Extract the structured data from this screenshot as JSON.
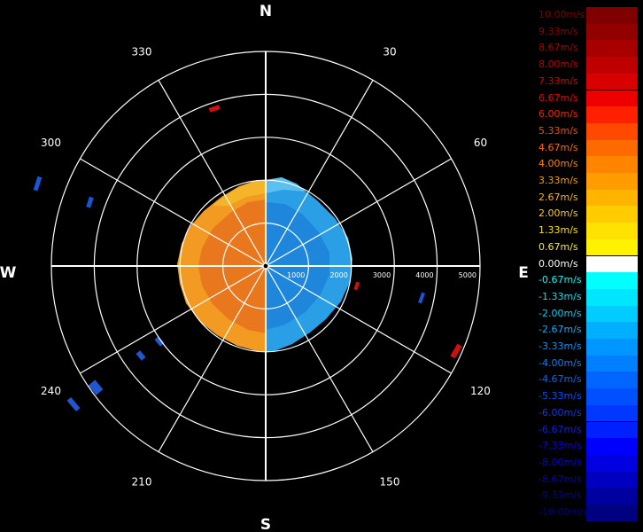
{
  "compass": {
    "north": "N",
    "south": "S",
    "east": "E",
    "west": "W"
  },
  "bearings": [
    "30",
    "60",
    "120",
    "150",
    "210",
    "240",
    "300",
    "330"
  ],
  "range_rings": [
    "1000",
    "2000",
    "3000",
    "4000",
    "5000"
  ],
  "legend": [
    {
      "label": "10.00m/s",
      "color": "#800000"
    },
    {
      "label": "9.33m/s",
      "color": "#930000"
    },
    {
      "label": "8.67m/s",
      "color": "#a80000"
    },
    {
      "label": "8.00m/s",
      "color": "#bf0000"
    },
    {
      "label": "7.33m/s",
      "color": "#d80000"
    },
    {
      "label": "6.67m/s",
      "color": "#ef0000"
    },
    {
      "label": "6.00m/s",
      "color": "#ff2000"
    },
    {
      "label": "5.33m/s",
      "color": "#ff4800"
    },
    {
      "label": "4.67m/s",
      "color": "#ff6a00"
    },
    {
      "label": "4.00m/s",
      "color": "#ff8400"
    },
    {
      "label": "3.33m/s",
      "color": "#ff9c00"
    },
    {
      "label": "2.67m/s",
      "color": "#ffb400"
    },
    {
      "label": "2.00m/s",
      "color": "#ffcc00"
    },
    {
      "label": "1.33m/s",
      "color": "#ffe200"
    },
    {
      "label": "0.67m/s",
      "color": "#fff200"
    },
    {
      "label": "0.00m/s",
      "color": "#ffffff"
    },
    {
      "label": "-0.67m/s",
      "color": "#00ffff"
    },
    {
      "label": "-1.33m/s",
      "color": "#00e6ff"
    },
    {
      "label": "-2.00m/s",
      "color": "#00ccff"
    },
    {
      "label": "-2.67m/s",
      "color": "#00b0ff"
    },
    {
      "label": "-3.33m/s",
      "color": "#0096ff"
    },
    {
      "label": "-4.00m/s",
      "color": "#0080ff"
    },
    {
      "label": "-4.67m/s",
      "color": "#0066ff"
    },
    {
      "label": "-5.33m/s",
      "color": "#0050ff"
    },
    {
      "label": "-6.00m/s",
      "color": "#0038ff"
    },
    {
      "label": "-6.67m/s",
      "color": "#0020ff"
    },
    {
      "label": "-7.33m/s",
      "color": "#0000ff"
    },
    {
      "label": "-8.00m/s",
      "color": "#0000e0"
    },
    {
      "label": "-8.67m/s",
      "color": "#0000c0"
    },
    {
      "label": "-9.33m/s",
      "color": "#0000a0"
    },
    {
      "label": "-10.00m/s",
      "color": "#000080"
    }
  ],
  "colors": {
    "background": "#000000",
    "grid": "#ffffff"
  }
}
